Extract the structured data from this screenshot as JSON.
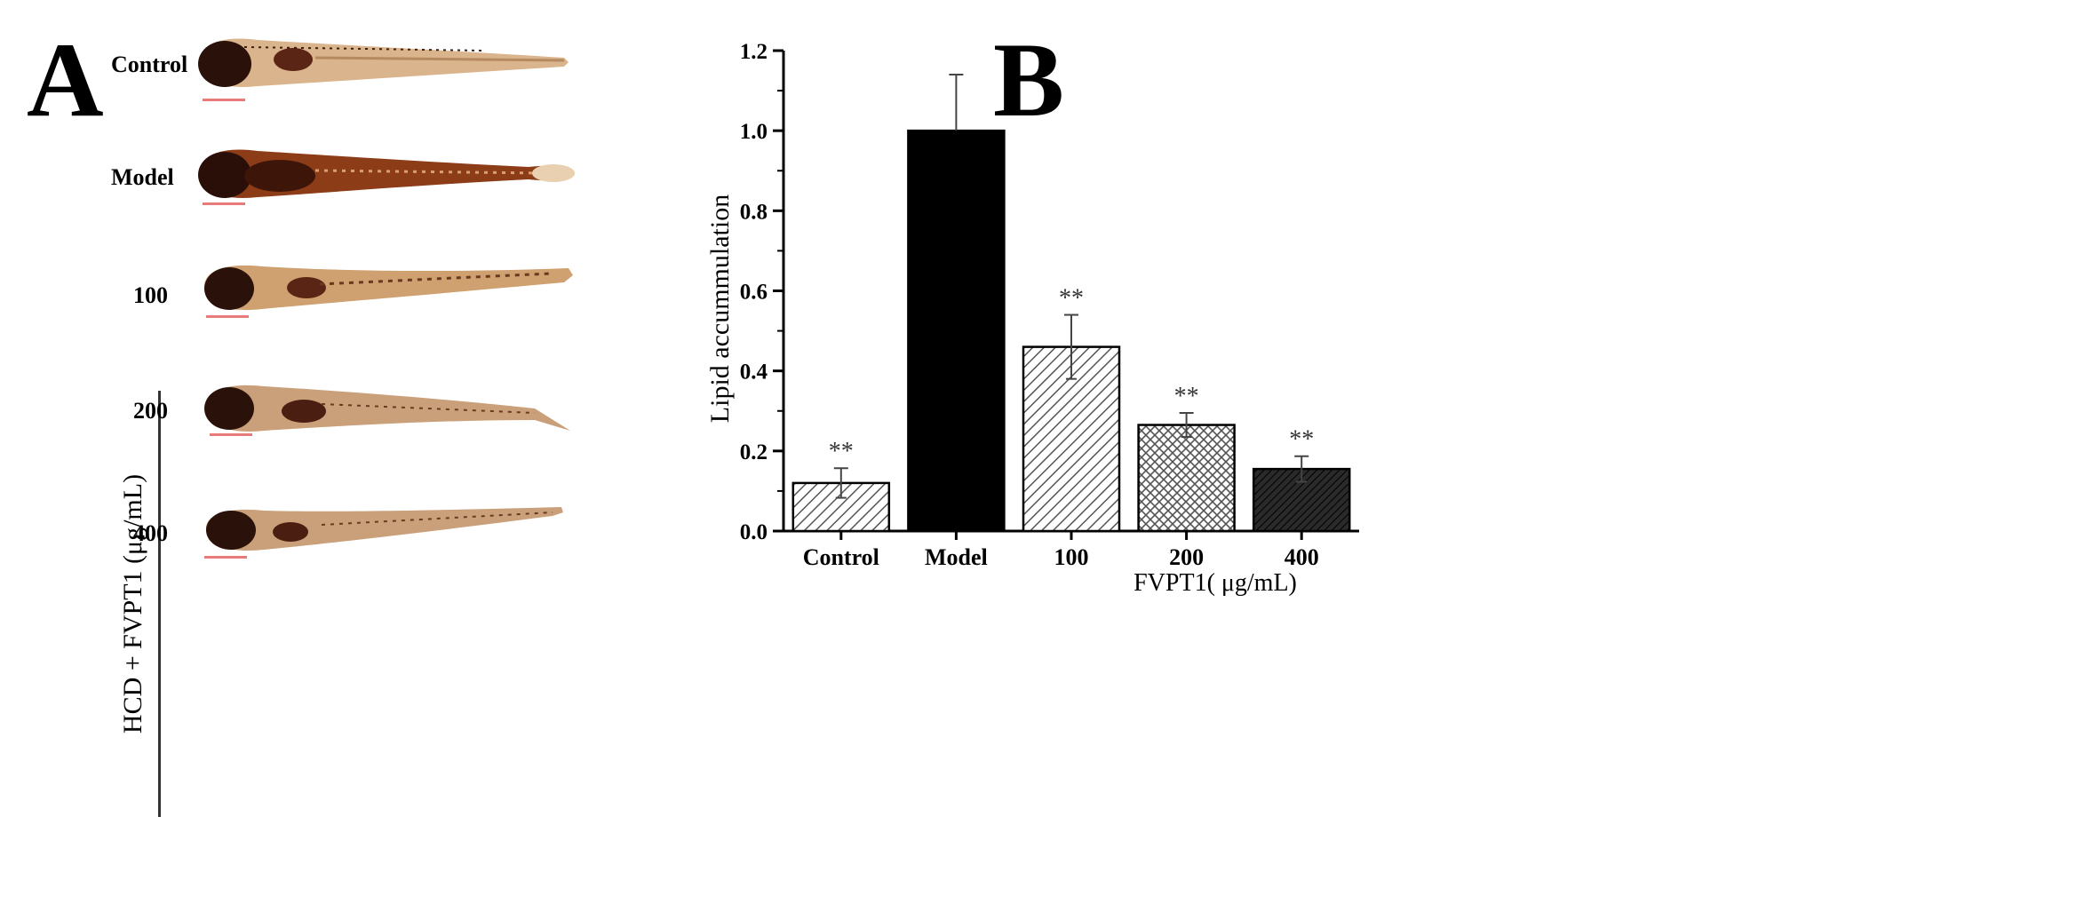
{
  "panel_a": {
    "letter": "A",
    "rows": [
      {
        "label": "Control"
      },
      {
        "label": "Model"
      },
      {
        "label": "100"
      },
      {
        "label": "200"
      },
      {
        "label": "400"
      }
    ],
    "group_label": "HCD + FVPT1 (μg/mL)",
    "colors": {
      "fish_body": "#caa07a",
      "fish_dark": "#3a1a10",
      "fish_model": "#8a3a18",
      "scalebar": "#e87a7a"
    }
  },
  "panel_b": {
    "letter": "B"
  },
  "chart_data": {
    "type": "bar",
    "title": "",
    "xlabel": "FVPT1( μg/mL)",
    "ylabel": "Lipid accummulation",
    "categories": [
      "Control",
      "Model",
      "100",
      "200",
      "400"
    ],
    "values": [
      0.12,
      1.0,
      0.46,
      0.265,
      0.155
    ],
    "errors": [
      0.037,
      0.14,
      0.08,
      0.03,
      0.032
    ],
    "significance": [
      "**",
      "",
      "**",
      "**",
      "**"
    ],
    "fills": [
      "hatch-diag",
      "solid-black",
      "hatch-diag",
      "crosshatch",
      "dark-hatch"
    ],
    "ylim": [
      0.0,
      1.2
    ],
    "yticks": [
      "0.0",
      "0.2",
      "0.4",
      "0.6",
      "0.8",
      "1.0",
      "1.2"
    ],
    "grid": false
  }
}
